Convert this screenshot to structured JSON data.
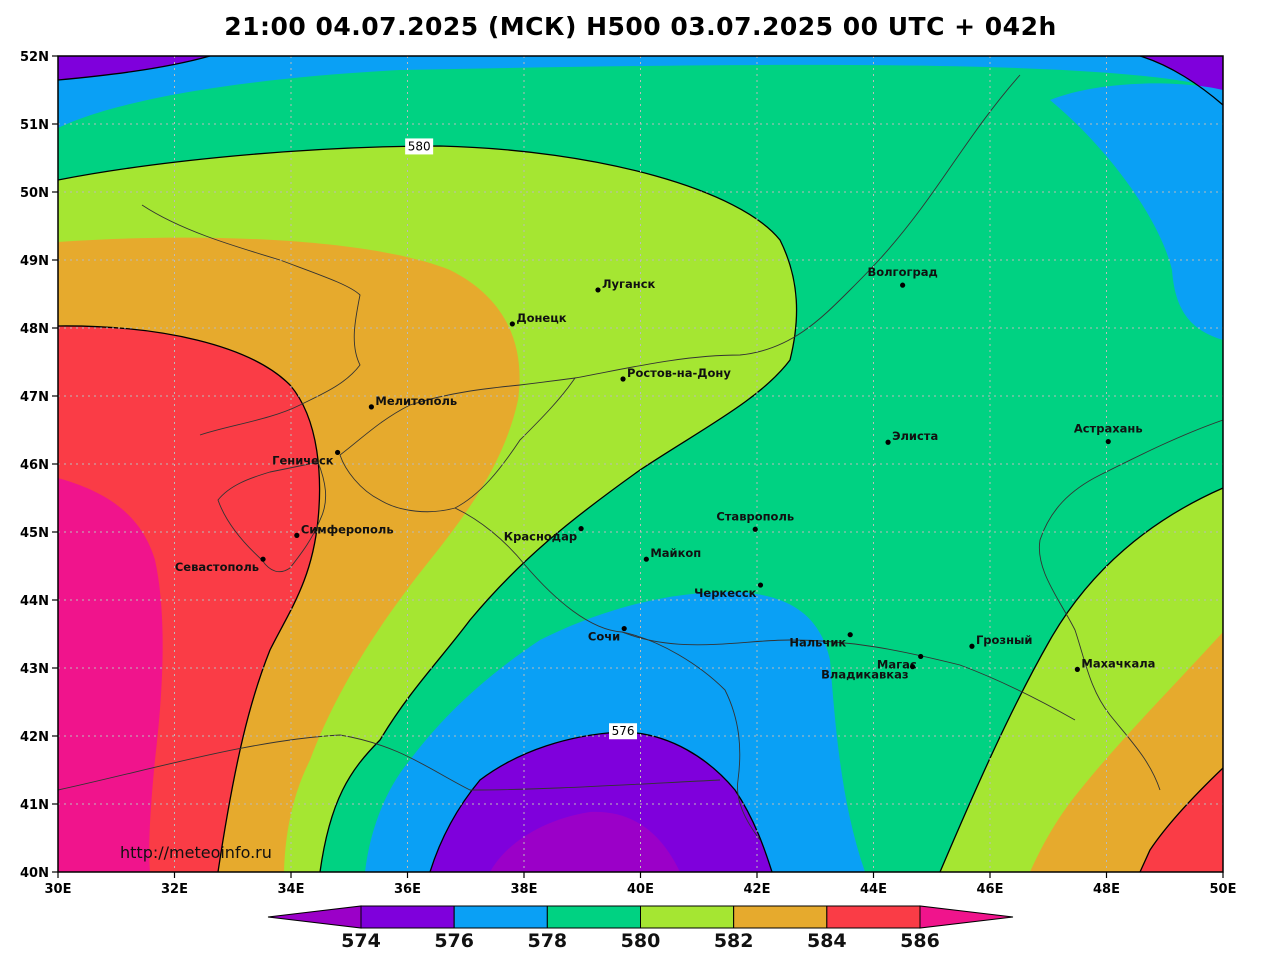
{
  "title": "21:00 04.07.2025 (МСК) H500  03.07.2025 00 UTC + 042h",
  "watermark": "http://meteoinfo.ru",
  "colors": {
    "c574": "#9b00c8",
    "c576": "#7f00dc",
    "c578": "#0aa0f5",
    "c580": "#00d282",
    "c582": "#a5e632",
    "c584": "#e6aa2d",
    "c586": "#fa3c46",
    "c588": "#f0148c",
    "city_dot": "#000000",
    "coast": "#333333"
  },
  "axes": {
    "lon_range": [
      30,
      50
    ],
    "lat_range": [
      40,
      52
    ],
    "lon_labels": [
      "30E",
      "32E",
      "34E",
      "36E",
      "38E",
      "40E",
      "42E",
      "44E",
      "46E",
      "48E",
      "50E"
    ],
    "lat_labels": [
      "40N",
      "41N",
      "42N",
      "43N",
      "44N",
      "45N",
      "46N",
      "47N",
      "48N",
      "49N",
      "50N",
      "51N",
      "52N"
    ]
  },
  "isolines": [
    {
      "label": "580",
      "lon": 36.2,
      "lat": 50.67
    },
    {
      "label": "576",
      "lon": 39.7,
      "lat": 42.07
    }
  ],
  "cities": [
    {
      "name": "Луганск",
      "lon": 39.27,
      "lat": 48.56,
      "anchor": "start"
    },
    {
      "name": "Донецк",
      "lon": 37.8,
      "lat": 48.06,
      "anchor": "start"
    },
    {
      "name": "Волгоград",
      "lon": 44.5,
      "lat": 48.63,
      "anchor": "middle"
    },
    {
      "name": "Ростов-на-Дону",
      "lon": 39.7,
      "lat": 47.25,
      "anchor": "start"
    },
    {
      "name": "Мелитополь",
      "lon": 35.38,
      "lat": 46.84,
      "anchor": "start"
    },
    {
      "name": "Геническ",
      "lon": 34.8,
      "lat": 46.17,
      "anchor": "end"
    },
    {
      "name": "Элиста",
      "lon": 44.25,
      "lat": 46.32,
      "anchor": "start"
    },
    {
      "name": "Астрахань",
      "lon": 48.03,
      "lat": 46.33,
      "anchor": "middle"
    },
    {
      "name": "Краснодар",
      "lon": 38.98,
      "lat": 45.05,
      "anchor": "end"
    },
    {
      "name": "Ставрополь",
      "lon": 41.97,
      "lat": 45.04,
      "anchor": "middle"
    },
    {
      "name": "Симферополь",
      "lon": 34.1,
      "lat": 44.95,
      "anchor": "start"
    },
    {
      "name": "Севастополь",
      "lon": 33.52,
      "lat": 44.6,
      "anchor": "end"
    },
    {
      "name": "Майкоп",
      "lon": 40.1,
      "lat": 44.6,
      "anchor": "start"
    },
    {
      "name": "Черкесск",
      "lon": 42.06,
      "lat": 44.22,
      "anchor": "end"
    },
    {
      "name": "Сочи",
      "lon": 39.72,
      "lat": 43.58,
      "anchor": "end"
    },
    {
      "name": "Нальчик",
      "lon": 43.6,
      "lat": 43.49,
      "anchor": "end"
    },
    {
      "name": "Магас",
      "lon": 44.81,
      "lat": 43.17,
      "anchor": "end"
    },
    {
      "name": "Грозный",
      "lon": 45.69,
      "lat": 43.32,
      "anchor": "start"
    },
    {
      "name": "Владикавказ",
      "lon": 44.67,
      "lat": 43.02,
      "anchor": "end"
    },
    {
      "name": "Махачкала",
      "lon": 47.5,
      "lat": 42.98,
      "anchor": "start"
    }
  ],
  "colorbar": {
    "labels": [
      "574",
      "576",
      "578",
      "580",
      "582",
      "584",
      "586"
    ]
  }
}
